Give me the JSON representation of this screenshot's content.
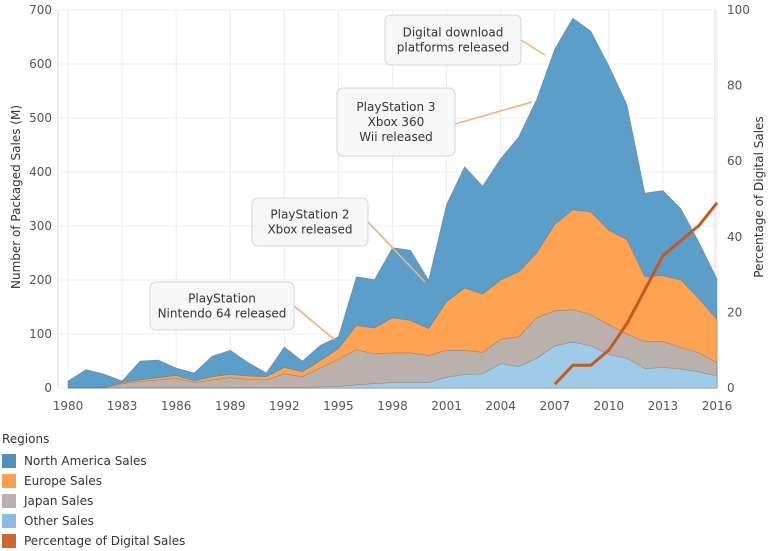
{
  "chart_data": {
    "type": "area",
    "x": [
      1980,
      1981,
      1982,
      1983,
      1984,
      1985,
      1986,
      1987,
      1988,
      1989,
      1990,
      1991,
      1992,
      1993,
      1994,
      1995,
      1996,
      1997,
      1998,
      1999,
      2000,
      2001,
      2002,
      2003,
      2004,
      2005,
      2006,
      2007,
      2008,
      2009,
      2010,
      2011,
      2012,
      2013,
      2014,
      2015,
      2016
    ],
    "ylabel": "Number of Packaged Sales (M)",
    "y2label": "Percentage of Digital Sales",
    "ylim": [
      0,
      700
    ],
    "y2lim": [
      0,
      100
    ],
    "y_ticks": [
      0,
      100,
      200,
      300,
      400,
      500,
      600,
      700
    ],
    "y2_ticks": [
      0,
      20,
      40,
      60,
      80,
      100
    ],
    "x_ticks": [
      1980,
      1983,
      1986,
      1989,
      1992,
      1995,
      1998,
      2001,
      2004,
      2007,
      2010,
      2013,
      2016
    ],
    "stacked": true,
    "series": [
      {
        "name": "Other Sales",
        "color": "#a0cbe8",
        "values": [
          0,
          0,
          0,
          0,
          0,
          0,
          0,
          0,
          0,
          1,
          1,
          1,
          1,
          1,
          2,
          3,
          6,
          8,
          10,
          10,
          10,
          20,
          25,
          26,
          45,
          40,
          55,
          78,
          85,
          78,
          62,
          55,
          36,
          38,
          35,
          30,
          22
        ]
      },
      {
        "name": "Japan Sales",
        "color": "#bab0ac",
        "values": [
          0,
          0,
          0,
          8,
          12,
          15,
          18,
          10,
          15,
          18,
          15,
          14,
          25,
          20,
          35,
          50,
          65,
          55,
          55,
          55,
          50,
          50,
          45,
          40,
          45,
          55,
          75,
          65,
          60,
          58,
          55,
          45,
          50,
          48,
          40,
          35,
          25
        ]
      },
      {
        "name": "Europe Sales",
        "color": "#ffa352",
        "values": [
          1,
          1,
          1,
          2,
          3,
          4,
          5,
          3,
          6,
          6,
          6,
          6,
          12,
          9,
          14,
          20,
          45,
          48,
          65,
          60,
          50,
          90,
          115,
          108,
          110,
          120,
          120,
          160,
          185,
          190,
          175,
          175,
          120,
          122,
          125,
          100,
          80
        ]
      },
      {
        "name": "North America Sales",
        "color": "#5b9ec9",
        "values": [
          12,
          33,
          25,
          3,
          35,
          33,
          14,
          15,
          38,
          45,
          25,
          7,
          38,
          20,
          28,
          22,
          90,
          90,
          130,
          130,
          90,
          180,
          225,
          200,
          225,
          250,
          285,
          325,
          355,
          335,
          305,
          250,
          155,
          158,
          132,
          105,
          75
        ]
      }
    ],
    "line_series": {
      "name": "Percentage of Digital Sales",
      "color": "#c8581b",
      "axis": "right",
      "x": [
        2007,
        2008,
        2009,
        2010,
        2011,
        2012,
        2013,
        2014,
        2015,
        2016
      ],
      "values": [
        1,
        6,
        6,
        10,
        17,
        26,
        35,
        39,
        43,
        49
      ]
    },
    "annotations": [
      {
        "lines": [
          "PlayStation",
          "Nintendo 64 released"
        ],
        "year": 1995
      },
      {
        "lines": [
          "PlayStation 2",
          "Xbox released"
        ],
        "year": 2000
      },
      {
        "lines": [
          "PlayStation 3",
          "Xbox 360",
          "Wii released"
        ],
        "year": 2006
      },
      {
        "lines": [
          "Digital download",
          "platforms released"
        ],
        "year": 2008
      }
    ],
    "legend": {
      "title": "Regions",
      "placement": "bottom-left",
      "entries": [
        {
          "label": "North America Sales",
          "color": "#4e8fbd"
        },
        {
          "label": "Europe Sales",
          "color": "#ff9f4a"
        },
        {
          "label": "Japan Sales",
          "color": "#bab0ac"
        },
        {
          "label": "Other Sales",
          "color": "#8bbde3"
        },
        {
          "label": "Percentage of Digital Sales",
          "color": "#d0652b"
        }
      ]
    }
  }
}
